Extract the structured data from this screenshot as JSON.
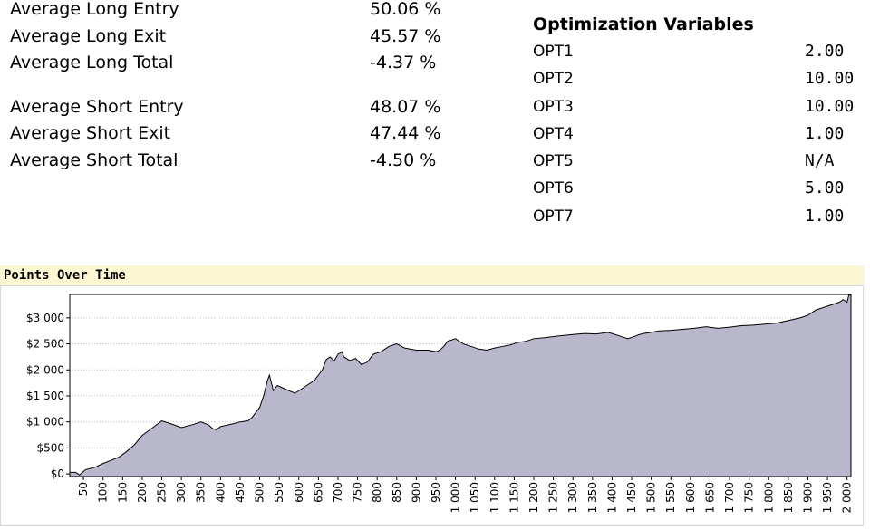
{
  "stats": {
    "long": [
      {
        "label": "Average Long Entry",
        "value": "50.06 %"
      },
      {
        "label": "Average Long Exit",
        "value": "45.57 %"
      },
      {
        "label": "Average Long Total",
        "value": "-4.37 %"
      }
    ],
    "short": [
      {
        "label": "Average Short Entry",
        "value": "48.07 %"
      },
      {
        "label": "Average Short Exit",
        "value": "47.44 %"
      },
      {
        "label": "Average Short Total",
        "value": "-4.50 %"
      }
    ]
  },
  "optimization": {
    "title": "Optimization Variables",
    "rows": [
      {
        "label": "OPT1",
        "value": "2.00"
      },
      {
        "label": "OPT2",
        "value": "10.00"
      },
      {
        "label": "OPT3",
        "value": "10.00"
      },
      {
        "label": "OPT4",
        "value": "1.00"
      },
      {
        "label": "OPT5",
        "value": "N/A"
      },
      {
        "label": "OPT6",
        "value": "5.00"
      },
      {
        "label": "OPT7",
        "value": "1.00"
      }
    ]
  },
  "chart_data": {
    "type": "area",
    "title": "Points Over Time",
    "xlabel": "",
    "ylabel": "",
    "xlim": [
      15,
      2010
    ],
    "ylim": [
      -50,
      3450
    ],
    "x_ticks": [
      50,
      100,
      150,
      200,
      250,
      300,
      350,
      400,
      450,
      500,
      550,
      600,
      650,
      700,
      750,
      800,
      850,
      900,
      950,
      1000,
      1050,
      1100,
      1150,
      1200,
      1250,
      1300,
      1350,
      1400,
      1450,
      1500,
      1550,
      1600,
      1650,
      1700,
      1750,
      1800,
      1850,
      1900,
      1950,
      2000
    ],
    "x_tick_labels": [
      "50",
      "100",
      "150",
      "200",
      "250",
      "300",
      "350",
      "400",
      "450",
      "500",
      "550",
      "600",
      "650",
      "700",
      "750",
      "800",
      "850",
      "900",
      "950",
      "1 000",
      "1 050",
      "1 100",
      "1 150",
      "1 200",
      "1 250",
      "1 300",
      "1 350",
      "1 400",
      "1 450",
      "1 500",
      "1 550",
      "1 600",
      "1 650",
      "1 700",
      "1 750",
      "1 800",
      "1 850",
      "1 900",
      "1 950",
      "2 000"
    ],
    "y_ticks": [
      0,
      500,
      1000,
      1500,
      2000,
      2500,
      3000
    ],
    "y_tick_labels": [
      "$0",
      "$500",
      "$1 000",
      "$1 500",
      "$2 000",
      "$2 500",
      "$3 000"
    ],
    "grid": true,
    "fill_color": "#b9b7cb",
    "line_color": "#000000",
    "x": [
      15,
      30,
      40,
      55,
      80,
      100,
      120,
      140,
      160,
      180,
      200,
      225,
      250,
      275,
      300,
      330,
      350,
      370,
      380,
      390,
      400,
      430,
      450,
      470,
      480,
      500,
      510,
      520,
      525,
      535,
      545,
      560,
      575,
      590,
      600,
      620,
      640,
      660,
      670,
      680,
      690,
      700,
      710,
      715,
      730,
      745,
      760,
      775,
      790,
      810,
      830,
      850,
      870,
      900,
      930,
      950,
      960,
      970,
      980,
      1000,
      1020,
      1040,
      1060,
      1080,
      1100,
      1120,
      1140,
      1160,
      1180,
      1200,
      1230,
      1260,
      1300,
      1330,
      1360,
      1390,
      1420,
      1440,
      1460,
      1470,
      1480,
      1500,
      1520,
      1550,
      1580,
      1610,
      1640,
      1670,
      1700,
      1730,
      1760,
      1790,
      1820,
      1850,
      1880,
      1900,
      1920,
      1940,
      1960,
      1980,
      1990,
      2000,
      2005,
      2010
    ],
    "values": [
      30,
      30,
      -20,
      80,
      130,
      200,
      260,
      320,
      430,
      560,
      740,
      880,
      1020,
      960,
      890,
      950,
      1000,
      940,
      870,
      850,
      910,
      960,
      1000,
      1020,
      1080,
      1280,
      1500,
      1800,
      1900,
      1600,
      1700,
      1650,
      1600,
      1550,
      1600,
      1700,
      1800,
      2000,
      2200,
      2250,
      2170,
      2300,
      2350,
      2250,
      2180,
      2220,
      2100,
      2150,
      2300,
      2350,
      2450,
      2500,
      2420,
      2380,
      2380,
      2350,
      2380,
      2450,
      2550,
      2600,
      2500,
      2450,
      2400,
      2380,
      2420,
      2450,
      2480,
      2530,
      2550,
      2600,
      2620,
      2650,
      2680,
      2700,
      2690,
      2720,
      2650,
      2600,
      2650,
      2680,
      2700,
      2720,
      2750,
      2760,
      2780,
      2800,
      2830,
      2800,
      2820,
      2850,
      2860,
      2880,
      2900,
      2950,
      3000,
      3050,
      3150,
      3200,
      3250,
      3300,
      3350,
      3300,
      3450,
      3430
    ]
  }
}
